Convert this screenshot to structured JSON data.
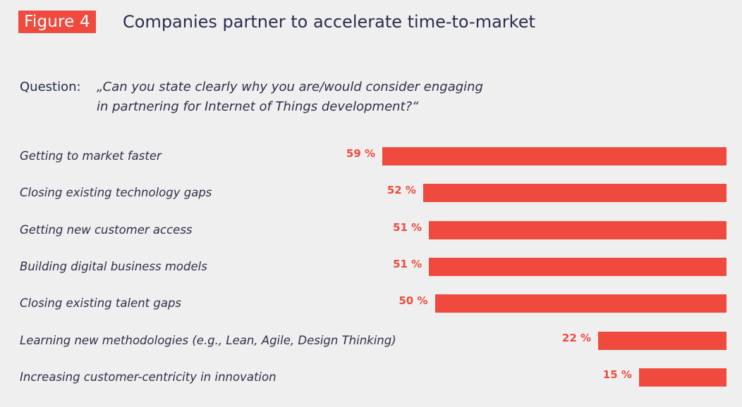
{
  "header": {
    "badge": "Figure 4",
    "title": "Companies partner to accelerate time-to-market"
  },
  "question": {
    "label": "Question:",
    "line1": "„Can you state clearly why you are/would consider engaging",
    "line2": "in partnering for Internet of Things development?“"
  },
  "colors": {
    "accent": "#f04a3f",
    "text": "#2d2f48",
    "background": "#efefef"
  },
  "chart_data": {
    "type": "bar",
    "orientation": "horizontal",
    "categories": [
      "Getting to market faster",
      "Closing existing technology gaps",
      "Getting new customer access",
      "Building digital business models",
      "Closing existing talent gaps",
      "Learning new methodologies (e.g., Lean, Agile, Design Thinking)",
      "Increasing customer-centricity in innovation"
    ],
    "values": [
      59,
      52,
      51,
      51,
      50,
      22,
      15
    ],
    "value_labels": [
      "59 %",
      "52 %",
      "51 %",
      "51 %",
      "50 %",
      "22 %",
      "15 %"
    ],
    "unit": "%",
    "bar_anchor": "right",
    "grid": false,
    "title": "Companies partner to accelerate time-to-market"
  }
}
